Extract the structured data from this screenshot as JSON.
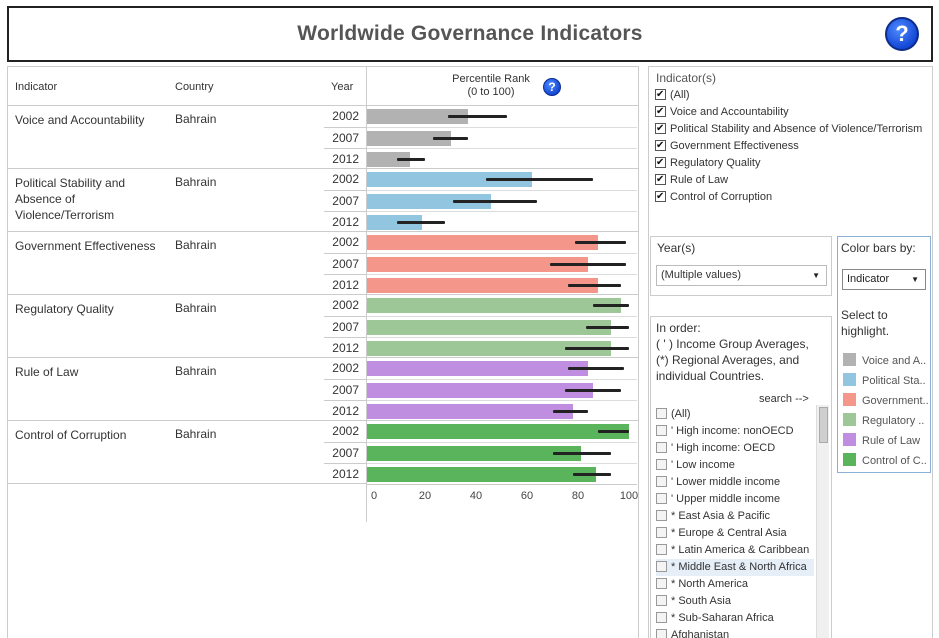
{
  "title": "Worldwide Governance Indicators",
  "help_label": "?",
  "table": {
    "headers": {
      "indicator": "Indicator",
      "country": "Country",
      "year": "Year"
    },
    "chart_title_line1": "Percentile Rank",
    "chart_title_line2": "(0 to 100)"
  },
  "colors": {
    "voice": "#b2b2b2",
    "political": "#92c6e0",
    "government": "#f4978a",
    "regulatory": "#9dc796",
    "rule": "#c08ee0",
    "corruption": "#5ab45c"
  },
  "chart_data": {
    "type": "bar",
    "xlabel": "",
    "xlim": [
      0,
      100
    ],
    "ticks": [
      "0",
      "20",
      "40",
      "60",
      "80",
      "100"
    ],
    "groups": [
      {
        "indicator": "Voice and Accountability",
        "country": "Bahrain",
        "color_key": "voice",
        "rows": [
          {
            "year": "2002",
            "value": 37,
            "low": 29,
            "high": 52
          },
          {
            "year": "2007",
            "value": 30,
            "low": 23,
            "high": 37
          },
          {
            "year": "2012",
            "value": 14,
            "low": 9,
            "high": 20
          }
        ]
      },
      {
        "indicator": "Political Stability and Absence of Violence/Terrorism",
        "country": "Bahrain",
        "color_key": "political",
        "rows": [
          {
            "year": "2002",
            "value": 62,
            "low": 44,
            "high": 86
          },
          {
            "year": "2007",
            "value": 46,
            "low": 31,
            "high": 64
          },
          {
            "year": "2012",
            "value": 19,
            "low": 9,
            "high": 28
          }
        ]
      },
      {
        "indicator": "Government Effectiveness",
        "country": "Bahrain",
        "color_key": "government",
        "rows": [
          {
            "year": "2002",
            "value": 88,
            "low": 79,
            "high": 99
          },
          {
            "year": "2007",
            "value": 84,
            "low": 69,
            "high": 99
          },
          {
            "year": "2012",
            "value": 88,
            "low": 76,
            "high": 97
          }
        ]
      },
      {
        "indicator": "Regulatory Quality",
        "country": "Bahrain",
        "color_key": "regulatory",
        "rows": [
          {
            "year": "2002",
            "value": 97,
            "low": 86,
            "high": 100
          },
          {
            "year": "2007",
            "value": 93,
            "low": 83,
            "high": 100
          },
          {
            "year": "2012",
            "value": 93,
            "low": 75,
            "high": 100
          }
        ]
      },
      {
        "indicator": "Rule of Law",
        "country": "Bahrain",
        "color_key": "rule",
        "rows": [
          {
            "year": "2002",
            "value": 84,
            "low": 76,
            "high": 98
          },
          {
            "year": "2007",
            "value": 86,
            "low": 75,
            "high": 97
          },
          {
            "year": "2012",
            "value": 78,
            "low": 70,
            "high": 84
          }
        ]
      },
      {
        "indicator": "Control of Corruption",
        "country": "Bahrain",
        "color_key": "corruption",
        "rows": [
          {
            "year": "2002",
            "value": 100,
            "low": 88,
            "high": 100
          },
          {
            "year": "2007",
            "value": 81,
            "low": 70,
            "high": 93
          },
          {
            "year": "2012",
            "value": 87,
            "low": 78,
            "high": 93
          }
        ]
      }
    ]
  },
  "indicator_filter": {
    "title": "Indicator(s)",
    "items": [
      {
        "label": "(All)",
        "checked": true
      },
      {
        "label": "Voice and Accountability",
        "checked": true
      },
      {
        "label": "Political Stability and Absence of Violence/Terrorism",
        "checked": true
      },
      {
        "label": "Government Effectiveness",
        "checked": true
      },
      {
        "label": "Regulatory Quality",
        "checked": true
      },
      {
        "label": "Rule of Law",
        "checked": true
      },
      {
        "label": "Control of Corruption",
        "checked": true
      }
    ]
  },
  "year_filter": {
    "title": "Year(s)",
    "value": "(Multiple values)"
  },
  "color_by": {
    "title": "Color bars by:",
    "value": "Indicator",
    "hint": "Select to highlight.",
    "legend": [
      {
        "label": "Voice and A..",
        "color_key": "voice"
      },
      {
        "label": "Political Sta..",
        "color_key": "political"
      },
      {
        "label": "Government..",
        "color_key": "government"
      },
      {
        "label": "Regulatory ..",
        "color_key": "regulatory"
      },
      {
        "label": "Rule of Law",
        "color_key": "rule"
      },
      {
        "label": "Control of C..",
        "color_key": "corruption"
      }
    ]
  },
  "entity_filter": {
    "instructions": "In order:\n( ' ) Income Group Averages,\n(*) Regional Averages, and individual Countries.",
    "search_label": "search -->",
    "items": [
      {
        "label": "(All)",
        "highlighted": false
      },
      {
        "label": "' High income: nonOECD",
        "highlighted": false
      },
      {
        "label": "' High income: OECD",
        "highlighted": false
      },
      {
        "label": "' Low income",
        "highlighted": false
      },
      {
        "label": "' Lower middle income",
        "highlighted": false
      },
      {
        "label": "' Upper middle income",
        "highlighted": false
      },
      {
        "label": "* East Asia & Pacific",
        "highlighted": false
      },
      {
        "label": "* Europe & Central Asia",
        "highlighted": false
      },
      {
        "label": "* Latin America & Caribbean",
        "highlighted": false
      },
      {
        "label": "* Middle East & North Africa",
        "highlighted": true
      },
      {
        "label": "* North America",
        "highlighted": false
      },
      {
        "label": "* South Asia",
        "highlighted": false
      },
      {
        "label": "* Sub-Saharan Africa",
        "highlighted": false
      },
      {
        "label": "Afghanistan",
        "highlighted": false
      }
    ]
  }
}
